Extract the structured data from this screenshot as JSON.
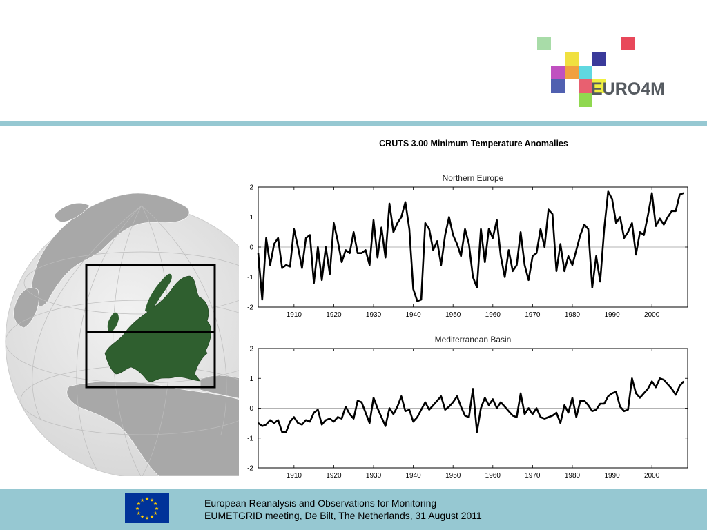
{
  "header": {
    "logo_text": "EURO4M",
    "logo_squares": [
      "#a8dca8",
      "#e8485a",
      "#f0e040",
      "#3a3a9a",
      "#c050c0",
      "#f0a040",
      "#60d8e0",
      "#5060b0",
      "#e86070",
      "#f0f040",
      "#90d850"
    ]
  },
  "map": {
    "highlight_color": "#2f5f2f",
    "land_color": "#a8a8a8",
    "ocean_color": "#e4e4e4",
    "regions": [
      "Northern Europe",
      "Mediterranean Basin"
    ]
  },
  "chart_data": {
    "title": "CRUTS 3.00 Minimum Temperature Anomalies",
    "type": "line",
    "panels": [
      {
        "title": "Northern Europe",
        "xlim": [
          1901,
          2009
        ],
        "ylim": [
          -2,
          2
        ],
        "xticks": [
          1910,
          1920,
          1930,
          1940,
          1950,
          1960,
          1970,
          1980,
          1990,
          2000
        ],
        "yticks": [
          2,
          1,
          0,
          -1,
          -2
        ],
        "series": [
          {
            "x_start": 1901,
            "values": [
              -0.2,
              -1.75,
              0.3,
              -0.6,
              0.1,
              0.3,
              -0.7,
              -0.6,
              -0.65,
              0.6,
              0.0,
              -0.7,
              0.3,
              0.4,
              -1.2,
              0.0,
              -1.1,
              0.0,
              -0.9,
              0.8,
              0.2,
              -0.5,
              -0.1,
              -0.2,
              0.5,
              -0.2,
              -0.2,
              -0.1,
              -0.6,
              0.9,
              -0.35,
              0.65,
              -0.35,
              1.45,
              0.5,
              0.8,
              1.0,
              1.5,
              0.6,
              -1.4,
              -1.8,
              -1.75,
              0.8,
              0.6,
              -0.1,
              0.2,
              -0.6,
              0.4,
              1.0,
              0.4,
              0.1,
              -0.3,
              0.6,
              0.1,
              -1.0,
              -1.35,
              0.6,
              -0.5,
              0.6,
              0.3,
              0.9,
              -0.3,
              -1.0,
              -0.1,
              -0.8,
              -0.6,
              0.5,
              -0.6,
              -1.1,
              -0.3,
              -0.2,
              0.6,
              0.0,
              1.25,
              1.1,
              -0.8,
              0.1,
              -0.8,
              -0.3,
              -0.6,
              -0.1,
              0.4,
              0.75,
              0.6,
              -1.35,
              -0.3,
              -1.15,
              0.6,
              1.85,
              1.6,
              0.8,
              1.0,
              0.3,
              0.5,
              0.8,
              -0.25,
              0.5,
              0.4,
              1.05,
              1.8,
              0.7,
              0.95,
              0.75,
              1.0,
              1.2,
              1.2,
              1.75,
              1.8
            ]
          }
        ]
      },
      {
        "title": "Mediterranean Basin",
        "xlim": [
          1901,
          2009
        ],
        "ylim": [
          -2,
          2
        ],
        "xticks": [
          1910,
          1920,
          1930,
          1940,
          1950,
          1960,
          1970,
          1980,
          1990,
          2000
        ],
        "yticks": [
          2,
          1,
          0,
          -1,
          -2
        ],
        "series": [
          {
            "x_start": 1901,
            "values": [
              -0.5,
              -0.6,
              -0.55,
              -0.4,
              -0.5,
              -0.4,
              -0.8,
              -0.8,
              -0.45,
              -0.3,
              -0.5,
              -0.55,
              -0.4,
              -0.45,
              -0.15,
              -0.05,
              -0.55,
              -0.4,
              -0.35,
              -0.45,
              -0.3,
              -0.35,
              0.05,
              -0.2,
              -0.35,
              0.25,
              0.2,
              -0.15,
              -0.5,
              0.35,
              0.0,
              -0.3,
              -0.6,
              0.0,
              -0.2,
              0.05,
              0.4,
              -0.1,
              -0.05,
              -0.45,
              -0.3,
              -0.05,
              0.2,
              -0.05,
              0.1,
              0.25,
              0.4,
              -0.05,
              0.05,
              0.2,
              0.4,
              0.05,
              -0.25,
              -0.3,
              0.65,
              -0.8,
              0.0,
              0.35,
              0.1,
              0.3,
              0.0,
              0.2,
              0.05,
              -0.1,
              -0.25,
              -0.3,
              0.5,
              -0.2,
              0.0,
              -0.2,
              0.0,
              -0.3,
              -0.35,
              -0.3,
              -0.25,
              -0.15,
              -0.5,
              0.1,
              -0.15,
              0.35,
              -0.3,
              0.25,
              0.25,
              0.1,
              -0.1,
              -0.05,
              0.15,
              0.15,
              0.4,
              0.5,
              0.55,
              0.05,
              -0.1,
              -0.05,
              1.0,
              0.5,
              0.35,
              0.5,
              0.65,
              0.9,
              0.7,
              1.0,
              0.95,
              0.8,
              0.65,
              0.45,
              0.75,
              0.9
            ]
          }
        ]
      }
    ]
  },
  "footer": {
    "line1": "European Reanalysis and Observations for Monitoring",
    "line2": "EUMETGRID meeting, De Bilt, The Netherlands, 31 August 2011",
    "flag_colors": {
      "field": "#003399",
      "stars": "#ffcc00"
    }
  }
}
